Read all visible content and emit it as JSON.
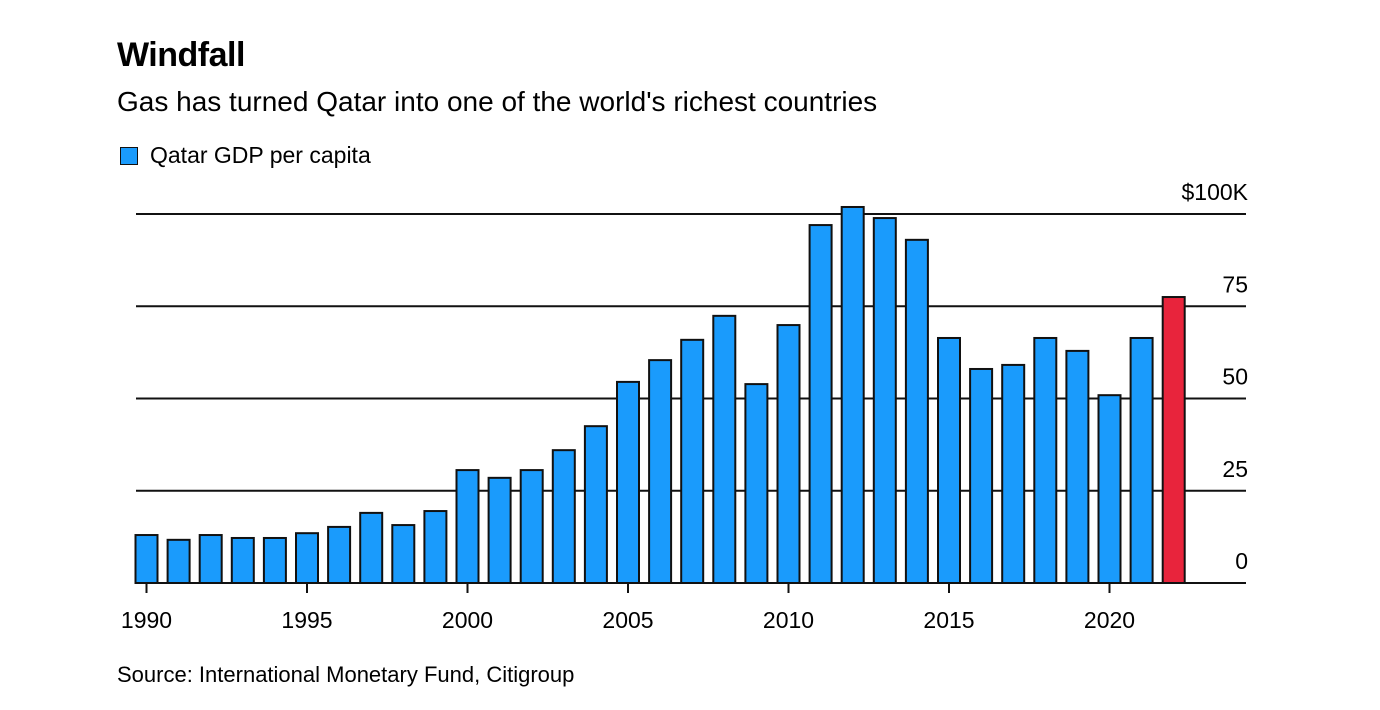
{
  "chart_data": {
    "type": "bar",
    "title": "Windfall",
    "subtitle": "Gas has turned Qatar into one of the world's richest countries",
    "legend": [
      {
        "label": "Qatar GDP per capita",
        "color": "#1a9bfc"
      }
    ],
    "legend_position": "top-left",
    "xlabel": "",
    "ylabel": "",
    "ylim": [
      0,
      100
    ],
    "y_ticks": [
      0,
      25,
      50,
      75,
      100
    ],
    "y_tick_labels": [
      "0",
      "25",
      "50",
      "75",
      "$100K"
    ],
    "x_tick_labels": [
      "1990",
      "1995",
      "2000",
      "2005",
      "2010",
      "2015",
      "2020"
    ],
    "grid": true,
    "categories": [
      1990,
      1991,
      1992,
      1993,
      1994,
      1995,
      1996,
      1997,
      1998,
      1999,
      2000,
      2001,
      2002,
      2003,
      2004,
      2005,
      2006,
      2007,
      2008,
      2009,
      2010,
      2011,
      2012,
      2013,
      2014,
      2015,
      2016,
      2017,
      2018,
      2019,
      2020,
      2021,
      2022
    ],
    "series": [
      {
        "name": "Qatar GDP per capita",
        "unit": "thousand USD",
        "values": [
          13.0,
          11.7,
          13.0,
          12.2,
          12.2,
          13.5,
          15.2,
          19.0,
          15.7,
          19.5,
          30.6,
          28.5,
          30.6,
          36.0,
          42.5,
          54.5,
          60.4,
          65.9,
          72.4,
          53.9,
          69.9,
          97.0,
          101.9,
          98.9,
          93.0,
          66.4,
          58.0,
          59.1,
          66.4,
          62.9,
          50.9,
          66.4,
          77.5
        ]
      }
    ],
    "highlight": {
      "category": 2022,
      "color": "#e8243c"
    },
    "bar_color": "#1a9bfc",
    "source": "Source: International Monetary Fund, Citigroup"
  }
}
